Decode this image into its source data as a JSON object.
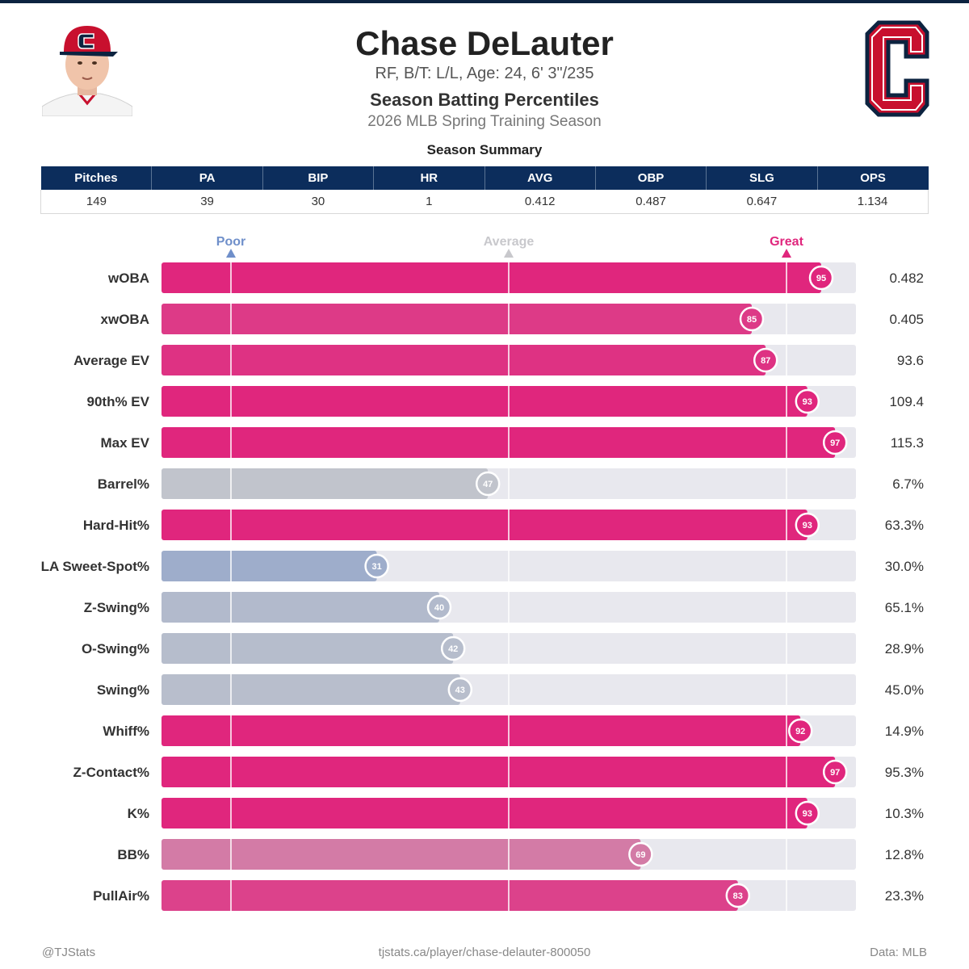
{
  "colors": {
    "great": "#e0267d",
    "poor": "#6f8fca",
    "average": "#c8c8cc",
    "track": "#e8e8ee",
    "navy": "#0c2d5c"
  },
  "header": {
    "name": "Chase DeLauter",
    "info": "RF, B/T: L/L, Age: 24, 6' 3\"/235",
    "subtitle": "Season Batting Percentiles",
    "season": "2026 MLB Spring Training Season",
    "summary_title": "Season Summary"
  },
  "summary": {
    "headers": [
      "Pitches",
      "PA",
      "BIP",
      "HR",
      "AVG",
      "OBP",
      "SLG",
      "OPS"
    ],
    "values": [
      "149",
      "39",
      "30",
      "1",
      "0.412",
      "0.487",
      "0.647",
      "1.134"
    ]
  },
  "chart_data": {
    "type": "bar",
    "title": "Season Batting Percentiles",
    "xlim": [
      0,
      100
    ],
    "markers": [
      {
        "label": "Poor",
        "value": 10
      },
      {
        "label": "Average",
        "value": 50
      },
      {
        "label": "Great",
        "value": 90
      }
    ],
    "categories": [
      "wOBA",
      "xwOBA",
      "Average EV",
      "90th% EV",
      "Max EV",
      "Barrel%",
      "Hard-Hit%",
      "LA Sweet-Spot%",
      "Z-Swing%",
      "O-Swing%",
      "Swing%",
      "Whiff%",
      "Z-Contact%",
      "K%",
      "BB%",
      "PullAir%"
    ],
    "percentiles": [
      95,
      85,
      87,
      93,
      97,
      47,
      93,
      31,
      40,
      42,
      43,
      92,
      97,
      93,
      69,
      83
    ],
    "stat_values": [
      "0.482",
      "0.405",
      "93.6",
      "109.4",
      "115.3",
      "6.7%",
      "63.3%",
      "30.0%",
      "65.1%",
      "28.9%",
      "45.0%",
      "14.9%",
      "95.3%",
      "10.3%",
      "12.8%",
      "23.3%"
    ]
  },
  "footer": {
    "left": "@TJStats",
    "center": "tjstats.ca/player/chase-delauter-800050",
    "right": "Data: MLB"
  }
}
